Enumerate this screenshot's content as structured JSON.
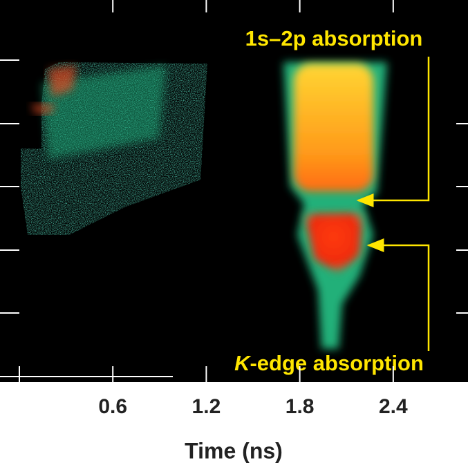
{
  "chart_data": {
    "type": "image",
    "xlabel": "Time (ns)",
    "xlim": [
      0,
      2.88
    ],
    "xticks": [
      0.6,
      1.2,
      1.8,
      2.4
    ],
    "annotations": [
      "1s–2p absorption",
      "K-edge absorption"
    ]
  }
}
